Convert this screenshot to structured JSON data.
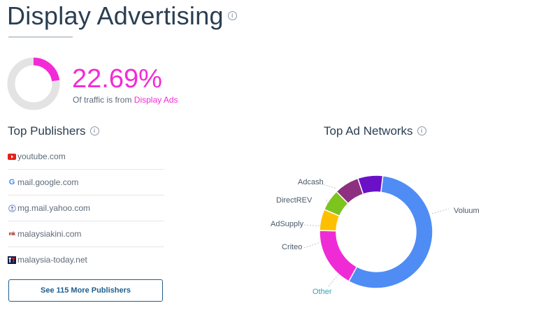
{
  "header": {
    "title": "Display Advertising"
  },
  "share": {
    "value": "22.69%",
    "caption_prefix": "Of traffic is from ",
    "caption_link": "Display Ads",
    "fraction": 0.2269
  },
  "publishers": {
    "title": "Top Publishers",
    "items": [
      {
        "domain": "youtube.com",
        "icon": "youtube-icon"
      },
      {
        "domain": "mail.google.com",
        "icon": "google-icon"
      },
      {
        "domain": "mg.mail.yahoo.com",
        "icon": "yahoo-icon"
      },
      {
        "domain": "malaysiakini.com",
        "icon": "malaysiakini-icon"
      },
      {
        "domain": "malaysia-today.net",
        "icon": "malaysia-today-icon"
      }
    ],
    "more_button": "See 115 More Publishers"
  },
  "ad_networks": {
    "title": "Top Ad Networks",
    "labels": {
      "adcash": "Adcash",
      "directrev": "DirectREV",
      "adsupply": "AdSupply",
      "criteo": "Criteo",
      "other": "Other",
      "voluum": "Voluum"
    }
  },
  "chart_data": {
    "type": "pie",
    "categories": [
      "Voluum",
      "Other",
      "Criteo",
      "AdSupply",
      "DirectREV",
      "Adcash"
    ],
    "values": [
      55,
      17,
      6,
      6,
      7,
      7
    ],
    "colors": [
      "#4f8df5",
      "#ef2bd6",
      "#fdc000",
      "#7dc41e",
      "#8e3080",
      "#6a11c7"
    ]
  },
  "colors": {
    "accent": "#f32bd6",
    "button": "#1f5e8d",
    "donut_track": "#e3e3e3"
  }
}
